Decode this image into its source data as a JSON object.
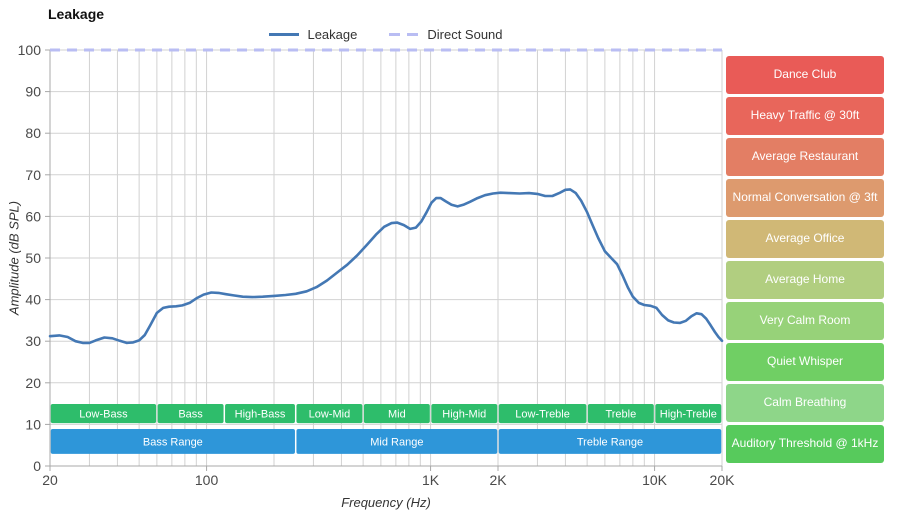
{
  "title": "Leakage",
  "legend": [
    {
      "label": "Leakage",
      "style": "solid",
      "color": "#4478b4"
    },
    {
      "label": "Direct Sound",
      "style": "dashed",
      "color": "#b9bdf3"
    }
  ],
  "colors": {
    "grid": "#d2d2d2",
    "spine": "#a8a8a8",
    "tick_text": "#4a4a4a",
    "band_text": "#ffffff"
  },
  "chart_data": {
    "type": "line",
    "title": "Leakage",
    "xlabel": "Frequency (Hz)",
    "ylabel": "Amplitude (dB SPL)",
    "x_scale": "log",
    "xlim": [
      20,
      20000
    ],
    "ylim": [
      0,
      100
    ],
    "y_tick_step": 10,
    "x_ticks": [
      {
        "v": 20,
        "label": "20"
      },
      {
        "v": 100,
        "label": "100"
      },
      {
        "v": 1000,
        "label": "1K"
      },
      {
        "v": 2000,
        "label": "2K"
      },
      {
        "v": 10000,
        "label": "10K"
      },
      {
        "v": 20000,
        "label": "20K"
      }
    ],
    "series": [
      {
        "name": "Direct Sound",
        "color": "#b9bdf3",
        "width": 3,
        "dash": "10 7",
        "hline": 100
      },
      {
        "name": "Leakage",
        "color": "#4478b4",
        "width": 2.6,
        "points": [
          [
            20,
            31.2
          ],
          [
            22,
            31.4
          ],
          [
            24,
            31.0
          ],
          [
            26,
            30.0
          ],
          [
            28,
            29.6
          ],
          [
            30,
            29.6
          ],
          [
            32,
            30.2
          ],
          [
            35,
            30.9
          ],
          [
            38,
            30.7
          ],
          [
            41,
            30.1
          ],
          [
            44,
            29.6
          ],
          [
            47,
            29.7
          ],
          [
            50,
            30.2
          ],
          [
            53,
            31.5
          ],
          [
            56,
            33.8
          ],
          [
            60,
            36.8
          ],
          [
            64,
            38.0
          ],
          [
            68,
            38.3
          ],
          [
            73,
            38.4
          ],
          [
            78,
            38.6
          ],
          [
            84,
            39.2
          ],
          [
            90,
            40.3
          ],
          [
            97,
            41.2
          ],
          [
            105,
            41.7
          ],
          [
            113,
            41.6
          ],
          [
            122,
            41.3
          ],
          [
            132,
            41.0
          ],
          [
            145,
            40.7
          ],
          [
            160,
            40.6
          ],
          [
            178,
            40.7
          ],
          [
            200,
            40.9
          ],
          [
            225,
            41.1
          ],
          [
            250,
            41.4
          ],
          [
            280,
            42.0
          ],
          [
            310,
            43.0
          ],
          [
            345,
            44.6
          ],
          [
            385,
            46.6
          ],
          [
            425,
            48.4
          ],
          [
            470,
            50.6
          ],
          [
            520,
            53.2
          ],
          [
            570,
            55.6
          ],
          [
            620,
            57.5
          ],
          [
            670,
            58.4
          ],
          [
            710,
            58.5
          ],
          [
            760,
            57.9
          ],
          [
            810,
            57.0
          ],
          [
            860,
            57.3
          ],
          [
            910,
            58.8
          ],
          [
            960,
            61.0
          ],
          [
            1010,
            63.3
          ],
          [
            1060,
            64.4
          ],
          [
            1110,
            64.4
          ],
          [
            1170,
            63.6
          ],
          [
            1240,
            62.8
          ],
          [
            1320,
            62.4
          ],
          [
            1400,
            62.8
          ],
          [
            1500,
            63.5
          ],
          [
            1620,
            64.4
          ],
          [
            1750,
            65.1
          ],
          [
            1900,
            65.5
          ],
          [
            2050,
            65.7
          ],
          [
            2250,
            65.6
          ],
          [
            2500,
            65.5
          ],
          [
            2750,
            65.6
          ],
          [
            3000,
            65.4
          ],
          [
            3250,
            64.9
          ],
          [
            3500,
            64.9
          ],
          [
            3750,
            65.6
          ],
          [
            4000,
            66.4
          ],
          [
            4200,
            66.5
          ],
          [
            4450,
            65.6
          ],
          [
            4700,
            63.8
          ],
          [
            5000,
            61.0
          ],
          [
            5300,
            57.8
          ],
          [
            5600,
            54.8
          ],
          [
            6000,
            51.6
          ],
          [
            6400,
            50.0
          ],
          [
            6800,
            48.5
          ],
          [
            7200,
            45.8
          ],
          [
            7600,
            42.9
          ],
          [
            8000,
            40.7
          ],
          [
            8500,
            39.2
          ],
          [
            9000,
            38.7
          ],
          [
            9600,
            38.5
          ],
          [
            10200,
            38.0
          ],
          [
            10800,
            36.3
          ],
          [
            11500,
            35.0
          ],
          [
            12200,
            34.5
          ],
          [
            13000,
            34.4
          ],
          [
            13800,
            34.9
          ],
          [
            14600,
            36.0
          ],
          [
            15400,
            36.7
          ],
          [
            16200,
            36.5
          ],
          [
            17000,
            35.4
          ],
          [
            17800,
            33.8
          ],
          [
            18600,
            32.2
          ],
          [
            19300,
            31.0
          ],
          [
            20000,
            30.1
          ]
        ]
      }
    ],
    "band_rows": [
      {
        "name": "sub-bands",
        "color": "#2ebd6b",
        "top_db": 14.9,
        "bottom_db": 10.3,
        "bands": [
          {
            "label": "Low-Bass",
            "from": 20,
            "to": 60
          },
          {
            "label": "Bass",
            "from": 60,
            "to": 120
          },
          {
            "label": "High-Bass",
            "from": 120,
            "to": 250
          },
          {
            "label": "Low-Mid",
            "from": 250,
            "to": 500
          },
          {
            "label": "Mid",
            "from": 500,
            "to": 1000
          },
          {
            "label": "High-Mid",
            "from": 1000,
            "to": 2000
          },
          {
            "label": "Low-Treble",
            "from": 2000,
            "to": 5000
          },
          {
            "label": "Treble",
            "from": 5000,
            "to": 10000
          },
          {
            "label": "High-Treble",
            "from": 10000,
            "to": 20000
          }
        ]
      },
      {
        "name": "main-ranges",
        "color": "#2e96d9",
        "top_db": 8.9,
        "bottom_db": 2.9,
        "bands": [
          {
            "label": "Bass Range",
            "from": 20,
            "to": 250
          },
          {
            "label": "Mid Range",
            "from": 250,
            "to": 2000
          },
          {
            "label": "Treble Range",
            "from": 2000,
            "to": 20000
          }
        ]
      }
    ]
  },
  "noise_levels": [
    {
      "label": "Dance Club",
      "color": "#e95b57"
    },
    {
      "label": "Heavy Traffic @ 30ft",
      "color": "#e8665b"
    },
    {
      "label": "Average Restaurant",
      "color": "#e37e64"
    },
    {
      "label": "Normal Conversation @ 3ft",
      "color": "#dd9a6e"
    },
    {
      "label": "Average Office",
      "color": "#d0b876"
    },
    {
      "label": "Average Home",
      "color": "#b1ce80"
    },
    {
      "label": "Very Calm Room",
      "color": "#97d279"
    },
    {
      "label": "Quiet Whisper",
      "color": "#70cf64"
    },
    {
      "label": "Calm Breathing",
      "color": "#8ed689"
    },
    {
      "label": "Auditory Threshold @ 1kHz",
      "color": "#57ca5c"
    }
  ]
}
